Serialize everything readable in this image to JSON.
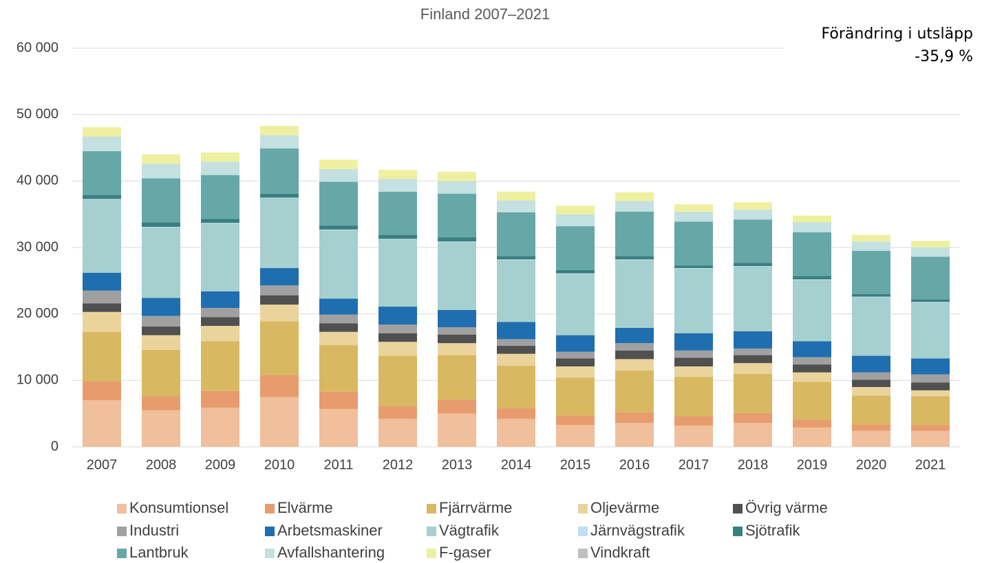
{
  "chart_data": {
    "type": "stacked_bar",
    "title": "Finland 2007–2021",
    "annotation": [
      "Förändring i utsläpp",
      "-35,9 %"
    ],
    "categories": [
      "2007",
      "2008",
      "2009",
      "2010",
      "2011",
      "2012",
      "2013",
      "2014",
      "2015",
      "2016",
      "2017",
      "2018",
      "2019",
      "2020",
      "2021"
    ],
    "ylim": [
      0,
      60000
    ],
    "yticks": [
      {
        "value": 0,
        "label": "0"
      },
      {
        "value": 10000,
        "label": "10 000"
      },
      {
        "value": 20000,
        "label": "20 000"
      },
      {
        "value": 30000,
        "label": "30 000"
      },
      {
        "value": 40000,
        "label": "40 000"
      },
      {
        "value": 50000,
        "label": "50 000"
      },
      {
        "value": 60000,
        "label": "60 000"
      }
    ],
    "grid": true,
    "legend": "bottom",
    "series": [
      {
        "name": "Konsumtionsel",
        "color": "#f0bf9b",
        "values": [
          7000,
          5500,
          5900,
          7500,
          5700,
          4200,
          5000,
          4200,
          3300,
          3600,
          3200,
          3600,
          2900,
          2400,
          2400
        ]
      },
      {
        "name": "Elvärme",
        "color": "#e89c6e",
        "values": [
          2900,
          2100,
          2500,
          3300,
          2600,
          1900,
          2100,
          1600,
          1400,
          1600,
          1400,
          1500,
          1200,
          1000,
          900
        ]
      },
      {
        "name": "Fjärrvärme",
        "color": "#d9b862",
        "values": [
          7400,
          7000,
          7500,
          8100,
          7000,
          7600,
          6700,
          6400,
          5700,
          6300,
          5900,
          5900,
          5700,
          4300,
          4300
        ]
      },
      {
        "name": "Oljevärme",
        "color": "#ebd49b",
        "values": [
          3000,
          2200,
          2300,
          2500,
          2000,
          2100,
          1800,
          1800,
          1700,
          1700,
          1600,
          1600,
          1400,
          1300,
          900
        ]
      },
      {
        "name": "Övrig värme",
        "color": "#505050",
        "values": [
          1300,
          1300,
          1300,
          1400,
          1300,
          1300,
          1300,
          1200,
          1200,
          1300,
          1300,
          1200,
          1200,
          1100,
          1200
        ]
      },
      {
        "name": "Industri",
        "color": "#a0a0a0",
        "values": [
          1900,
          1600,
          1400,
          1500,
          1300,
          1300,
          1100,
          1000,
          1000,
          1100,
          1100,
          1000,
          1100,
          1100,
          1200
        ]
      },
      {
        "name": "Arbetsmaskiner",
        "color": "#1f6eb0",
        "values": [
          2700,
          2700,
          2500,
          2600,
          2400,
          2700,
          2600,
          2600,
          2500,
          2300,
          2600,
          2600,
          2400,
          2500,
          2400
        ]
      },
      {
        "name": "Vägtrafik",
        "color": "#a6cfcf",
        "values": [
          11000,
          10600,
          10200,
          10500,
          10300,
          10100,
          10200,
          9300,
          9200,
          10200,
          9700,
          9700,
          9200,
          8800,
          8400
        ]
      },
      {
        "name": "Järnvägstrafik",
        "color": "#bfe0f2",
        "values": [
          100,
          100,
          100,
          100,
          100,
          100,
          100,
          100,
          100,
          100,
          100,
          100,
          100,
          100,
          100
        ]
      },
      {
        "name": "Sjötrafik",
        "color": "#3a7f80",
        "values": [
          600,
          700,
          600,
          600,
          600,
          600,
          600,
          500,
          500,
          500,
          400,
          500,
          500,
          400,
          400
        ]
      },
      {
        "name": "Lantbruk",
        "color": "#66a8a8",
        "values": [
          6600,
          6600,
          6600,
          6800,
          6600,
          6500,
          6600,
          6600,
          6600,
          6700,
          6600,
          6500,
          6600,
          6500,
          6400
        ]
      },
      {
        "name": "Avfallshantering",
        "color": "#c5e0e0",
        "values": [
          2200,
          2200,
          2000,
          2000,
          1900,
          1900,
          1900,
          1800,
          1800,
          1600,
          1500,
          1500,
          1500,
          1400,
          1400
        ]
      },
      {
        "name": "F-gaser",
        "color": "#eef0a0",
        "values": [
          1400,
          1400,
          1400,
          1400,
          1400,
          1400,
          1400,
          1300,
          1300,
          1300,
          1100,
          1100,
          1000,
          1000,
          1000
        ]
      },
      {
        "name": "Vindkraft",
        "color": "#c0c0c0",
        "values": [
          0,
          0,
          0,
          0,
          0,
          0,
          0,
          0,
          0,
          0,
          0,
          0,
          0,
          0,
          0
        ]
      }
    ]
  }
}
